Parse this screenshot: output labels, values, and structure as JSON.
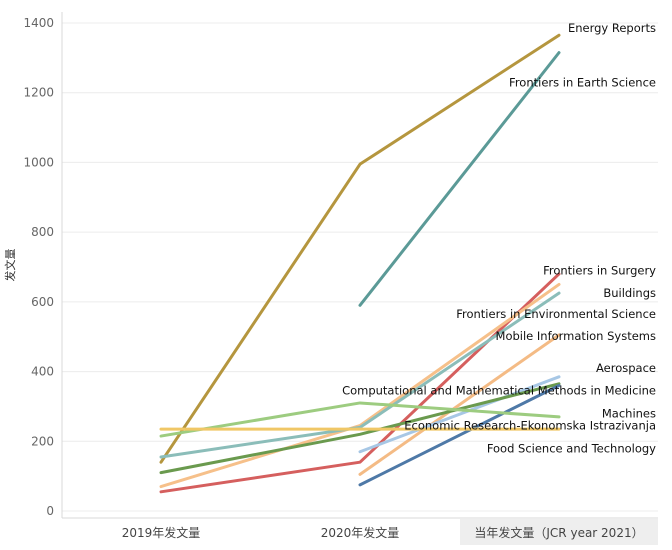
{
  "chart_data": {
    "type": "line",
    "ylabel": "发文量",
    "categories": [
      "2019年发文量",
      "2020年发文量",
      "当年发文量（JCR year 2021）"
    ],
    "highlighted_category": 2,
    "ylim": [
      0,
      1400
    ],
    "yticks": [
      0,
      200,
      400,
      600,
      800,
      1000,
      1200,
      1400
    ],
    "grid": "horizontal",
    "legend": "direct labels at line ends",
    "series": [
      {
        "name": "Energy Reports",
        "color": "#b5963e",
        "values": [
          140,
          995,
          1365
        ]
      },
      {
        "name": "Frontiers in Earth Science",
        "color": "#5b9a97",
        "values": [
          null,
          590,
          1315
        ]
      },
      {
        "name": "Frontiers in Surgery",
        "color": "#d55f5e",
        "values": [
          55,
          140,
          680
        ]
      },
      {
        "name": "Buildings",
        "color": "#f6c08a",
        "values": [
          70,
          245,
          650
        ]
      },
      {
        "name": "Frontiers in Environmental Science",
        "color": "#8bbdb9",
        "values": [
          155,
          240,
          625
        ]
      },
      {
        "name": "Mobile Information Systems",
        "color": "#f4bb85",
        "values": [
          null,
          105,
          505
        ]
      },
      {
        "name": "Aerospace",
        "color": "#a7c7e5",
        "values": [
          null,
          170,
          385
        ]
      },
      {
        "name": "Computational and Mathematical Methods in Medicine",
        "color": "#6a9a4e",
        "values": [
          110,
          220,
          365
        ]
      },
      {
        "name": "Machines",
        "color": "#4e79a7",
        "values": [
          null,
          75,
          360
        ]
      },
      {
        "name": "Economic Research-Ekonomska Istrazivanja",
        "color": "#9dcc80",
        "values": [
          215,
          310,
          270
        ]
      },
      {
        "name": "Food Science and Technology",
        "color": "#f0c766",
        "values": [
          235,
          235,
          235
        ]
      }
    ]
  }
}
